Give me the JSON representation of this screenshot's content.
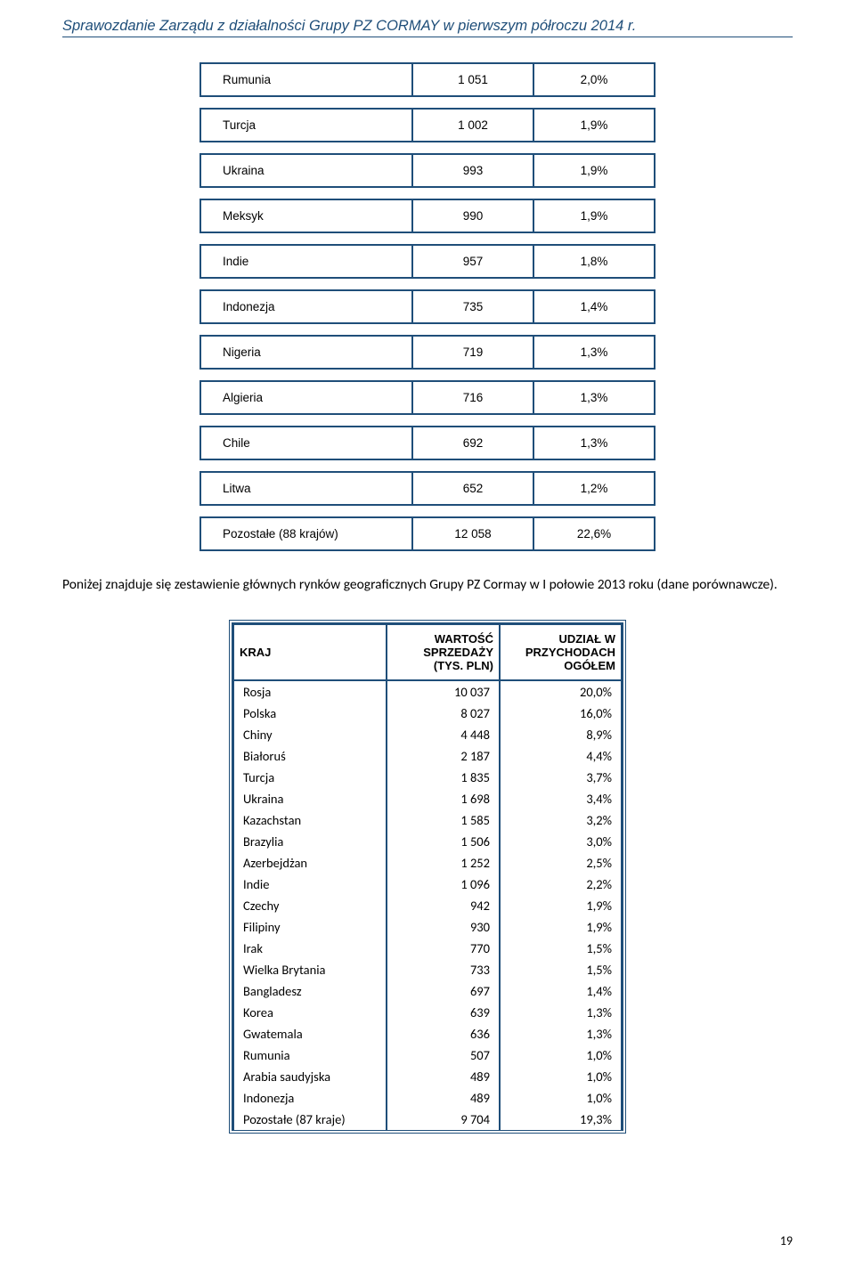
{
  "header": "Sprawozdanie Zarządu z działalności Grupy PZ CORMAY w pierwszym półroczu 2014 r.",
  "page_number": "19",
  "table1": {
    "rows": [
      {
        "name": "Rumunia",
        "value": "1 051",
        "pct": "2,0%"
      },
      {
        "name": "Turcja",
        "value": "1 002",
        "pct": "1,9%"
      },
      {
        "name": "Ukraina",
        "value": "993",
        "pct": "1,9%"
      },
      {
        "name": "Meksyk",
        "value": "990",
        "pct": "1,9%"
      },
      {
        "name": "Indie",
        "value": "957",
        "pct": "1,8%"
      },
      {
        "name": "Indonezja",
        "value": "735",
        "pct": "1,4%"
      },
      {
        "name": "Nigeria",
        "value": "719",
        "pct": "1,3%"
      },
      {
        "name": "Algieria",
        "value": "716",
        "pct": "1,3%"
      },
      {
        "name": "Chile",
        "value": "692",
        "pct": "1,3%"
      },
      {
        "name": "Litwa",
        "value": "652",
        "pct": "1,2%"
      },
      {
        "name": "Pozostałe (88 krajów)",
        "value": "12 058",
        "pct": "22,6%"
      }
    ]
  },
  "paragraph": "Poniżej znajduje się zestawienie głównych rynków geograficznych Grupy PZ Cormay w I połowie 2013 roku (dane porównawcze).",
  "table2": {
    "headers": {
      "col_a": "KRAJ",
      "col_b": "WARTOŚĆ SPRZEDAŻY (TYS. PLN)",
      "col_c": "UDZIAŁ W PRZYCHODACH OGÓŁEM"
    },
    "rows": [
      {
        "a": "Rosja",
        "b": "10 037",
        "c": "20,0%"
      },
      {
        "a": "Polska",
        "b": "8 027",
        "c": "16,0%"
      },
      {
        "a": "Chiny",
        "b": "4 448",
        "c": "8,9%"
      },
      {
        "a": "Białoruś",
        "b": "2 187",
        "c": "4,4%"
      },
      {
        "a": "Turcja",
        "b": "1 835",
        "c": "3,7%"
      },
      {
        "a": "Ukraina",
        "b": "1 698",
        "c": "3,4%"
      },
      {
        "a": "Kazachstan",
        "b": "1 585",
        "c": "3,2%"
      },
      {
        "a": "Brazylia",
        "b": "1 506",
        "c": "3,0%"
      },
      {
        "a": "Azerbejdżan",
        "b": "1 252",
        "c": "2,5%"
      },
      {
        "a": "Indie",
        "b": "1 096",
        "c": "2,2%"
      },
      {
        "a": "Czechy",
        "b": "942",
        "c": "1,9%"
      },
      {
        "a": "Filipiny",
        "b": "930",
        "c": "1,9%"
      },
      {
        "a": "Irak",
        "b": "770",
        "c": "1,5%"
      },
      {
        "a": "Wielka Brytania",
        "b": "733",
        "c": "1,5%"
      },
      {
        "a": "Bangladesz",
        "b": "697",
        "c": "1,4%"
      },
      {
        "a": "Korea",
        "b": "639",
        "c": "1,3%"
      },
      {
        "a": "Gwatemala",
        "b": "636",
        "c": "1,3%"
      },
      {
        "a": "Rumunia",
        "b": "507",
        "c": "1,0%"
      },
      {
        "a": "Arabia saudyjska",
        "b": "489",
        "c": "1,0%"
      },
      {
        "a": "Indonezja",
        "b": "489",
        "c": "1,0%"
      },
      {
        "a": "Pozostałe (87 kraje)",
        "b": "9 704",
        "c": "19,3%"
      }
    ]
  }
}
